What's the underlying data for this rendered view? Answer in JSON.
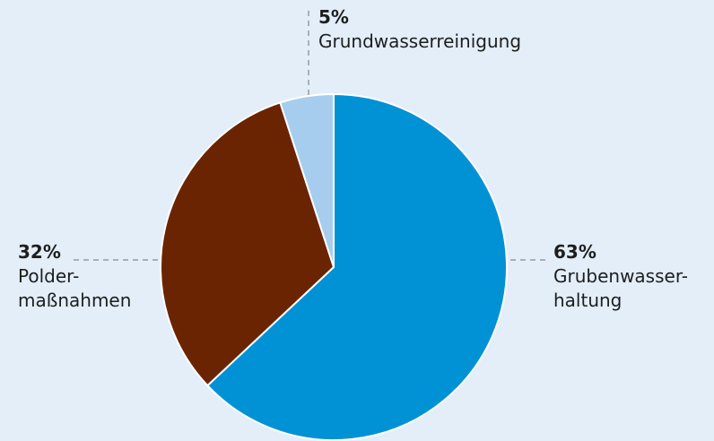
{
  "chart_data": {
    "type": "pie",
    "title": "",
    "slices": [
      {
        "label": "Grubenwasserhaltung",
        "label_lines": [
          "Grubenwasser-",
          "haltung"
        ],
        "percent_text": "63%",
        "value": 63,
        "color": "#0192d5"
      },
      {
        "label": "Poldermaßnahmen",
        "label_lines": [
          "Polder-",
          "maßnahmen"
        ],
        "percent_text": "32%",
        "value": 32,
        "color": "#6b2402"
      },
      {
        "label": "Grundwasserreinigung",
        "label_lines": [
          "Grundwasserreinigung"
        ],
        "percent_text": "5%",
        "value": 5,
        "color": "#a7cdee"
      }
    ]
  },
  "colors": {
    "background": "#e3eef9",
    "separator": "#ffffff",
    "leader_line": "#9a9a9a"
  }
}
